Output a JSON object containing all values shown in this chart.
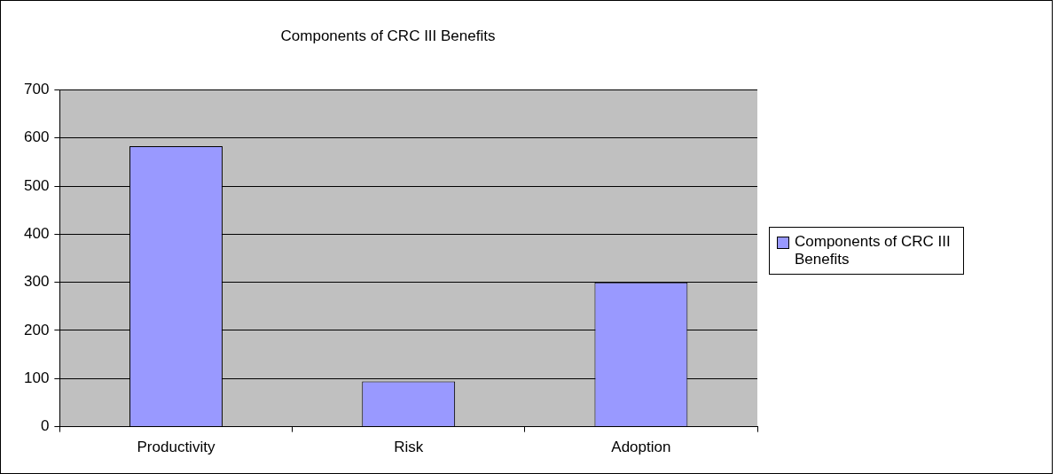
{
  "chart_data": {
    "type": "bar",
    "title": "Components of CRC III Benefits",
    "categories": [
      "Productivity",
      "Risk",
      "Adoption"
    ],
    "series": [
      {
        "name": "Components of CRC III Benefits",
        "color": "#9999ff",
        "values": [
          583,
          94,
          300
        ]
      }
    ],
    "ylim": [
      0,
      700
    ],
    "yticks": [
      0,
      100,
      200,
      300,
      400,
      500,
      600,
      700
    ],
    "grid": "y",
    "legend": "right"
  }
}
